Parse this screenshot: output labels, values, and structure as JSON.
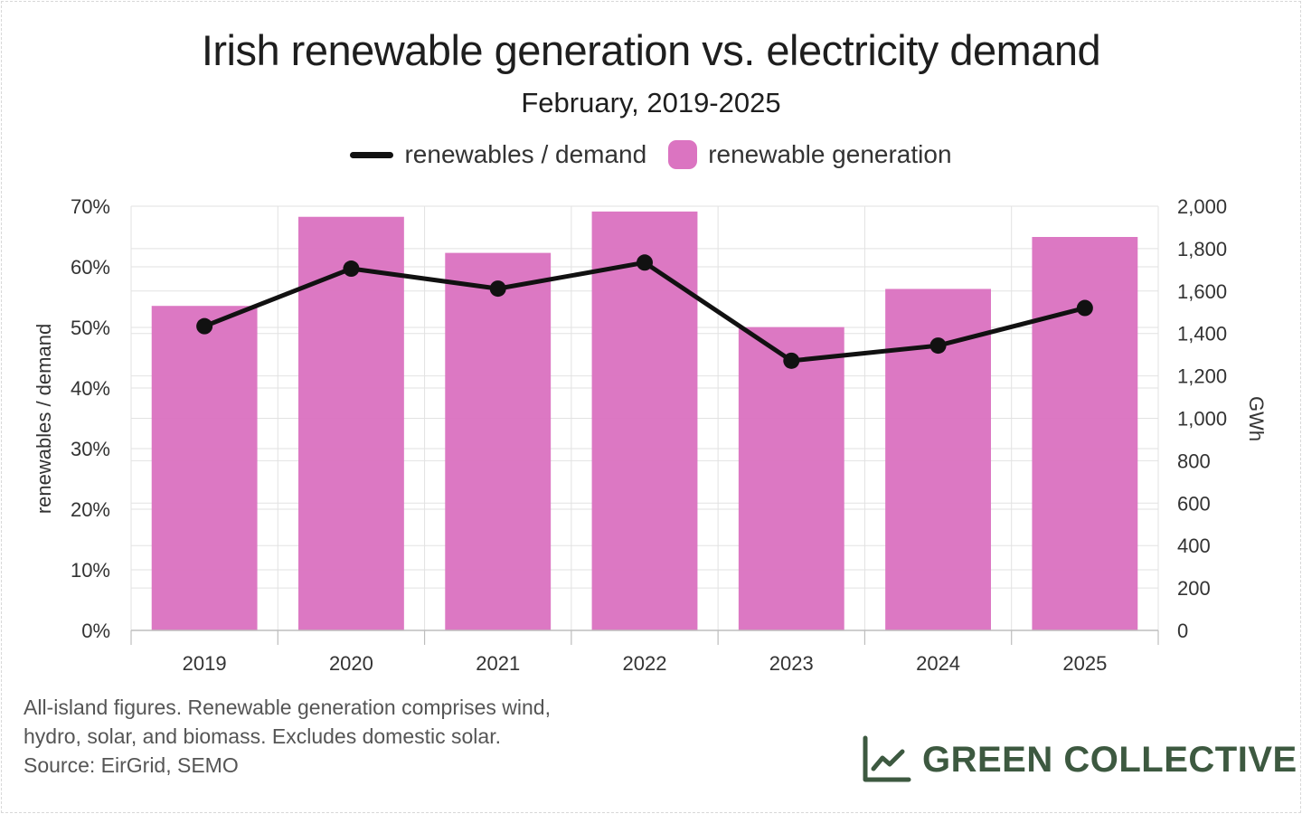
{
  "chart_data": {
    "type": "bar",
    "title": "Irish renewable generation vs. electricity demand",
    "subtitle": "February, 2019-2025",
    "categories": [
      "2019",
      "2020",
      "2021",
      "2022",
      "2023",
      "2024",
      "2025"
    ],
    "series": [
      {
        "name": "renewable generation",
        "type": "bar",
        "axis": "right",
        "color": "#db74c1",
        "values": [
          1530,
          1950,
          1780,
          1975,
          1430,
          1610,
          1855
        ]
      },
      {
        "name": "renewables / demand",
        "type": "line",
        "axis": "left",
        "color": "#111111",
        "values": [
          50.2,
          59.7,
          56.4,
          60.7,
          44.5,
          47.0,
          53.2
        ]
      }
    ],
    "y_left": {
      "label": "renewables / demand",
      "range": [
        0,
        70
      ],
      "ticks": [
        0,
        10,
        20,
        30,
        40,
        50,
        60,
        70
      ],
      "tick_labels": [
        "0%",
        "10%",
        "20%",
        "30%",
        "40%",
        "50%",
        "60%",
        "70%"
      ]
    },
    "y_right": {
      "label": "GWh",
      "range": [
        0,
        2000
      ],
      "ticks": [
        0,
        200,
        400,
        600,
        800,
        1000,
        1200,
        1400,
        1600,
        1800,
        2000
      ],
      "tick_labels": [
        "0",
        "200",
        "400",
        "600",
        "800",
        "1,000",
        "1,200",
        "1,400",
        "1,600",
        "1,800",
        "2,000"
      ]
    },
    "grid": true,
    "legend_position": "top-center"
  },
  "footnote": {
    "line1": "All-island figures. Renewable generation comprises wind,",
    "line2": "hydro, solar, and biomass. Excludes domestic solar.",
    "line3": "Source: EirGrid, SEMO"
  },
  "brand": {
    "name": "GREEN COLLECTIVE",
    "icon": "line-chart-icon",
    "color": "#3d5940"
  }
}
